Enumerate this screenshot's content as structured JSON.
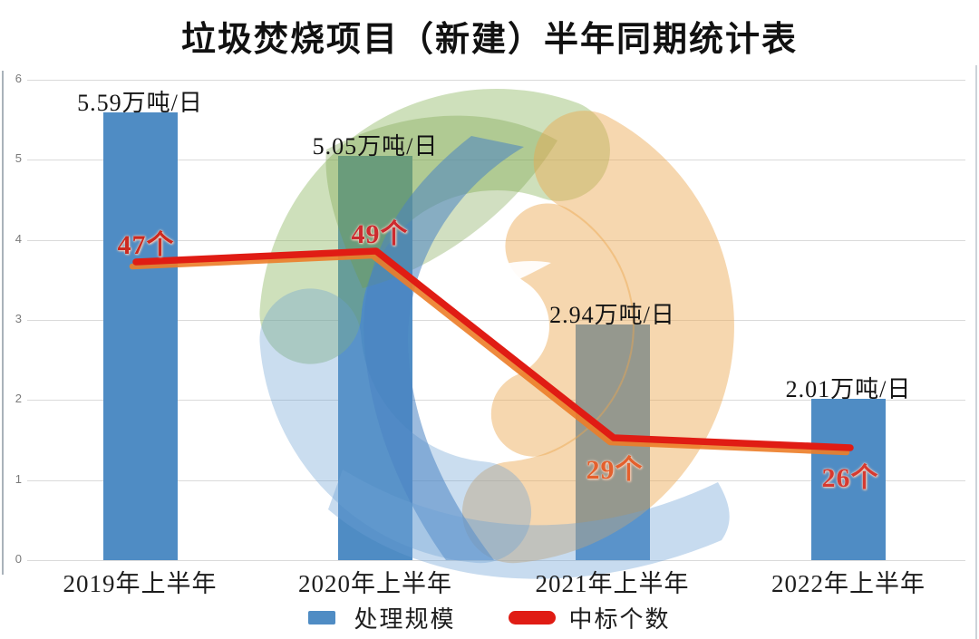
{
  "title": "垃圾焚烧项目（新建）半年同期统计表",
  "chart_data": {
    "type": "bar+line",
    "categories": [
      "2019年上半年",
      "2020年上半年",
      "2021年上半年",
      "2022年上半年"
    ],
    "series": [
      {
        "name": "处理规模",
        "type": "bar",
        "unit": "万吨/日",
        "values": [
          5.59,
          5.05,
          2.94,
          2.01
        ],
        "data_labels": [
          "5.59万吨/日",
          "5.05万吨/日",
          "2.94万吨/日",
          "2.01万吨/日"
        ],
        "color": "#4f8cc4"
      },
      {
        "name": "中标个数",
        "type": "line",
        "unit": "个",
        "values": [
          47,
          49,
          29,
          26
        ],
        "data_labels": [
          "47个",
          "49个",
          "29个",
          "26个"
        ],
        "label_colors": [
          "#cc2a20",
          "#cd2a2e",
          "#e4602d",
          "#d63a30"
        ],
        "color": "#e01c14",
        "underlay_color": "#ec7d28"
      }
    ],
    "ylim": [
      0,
      6
    ],
    "y_ticks": [
      "0",
      "1",
      "2",
      "3",
      "4",
      "5",
      "6"
    ],
    "grid": "horizontal-light-gray",
    "legend_position": "bottom-center"
  },
  "legend": {
    "bar_label": "处理规模",
    "line_label": "中标个数"
  },
  "colors": {
    "bar": "#4f8cc4",
    "line": "#e01c14",
    "line_underlay": "#ec7d28",
    "grid": "#dadada",
    "tick_text": "#7a7a7a",
    "watermark_green": "#8ab45e",
    "watermark_orange": "#eaa64e",
    "watermark_blue": "#6ba0d4"
  }
}
